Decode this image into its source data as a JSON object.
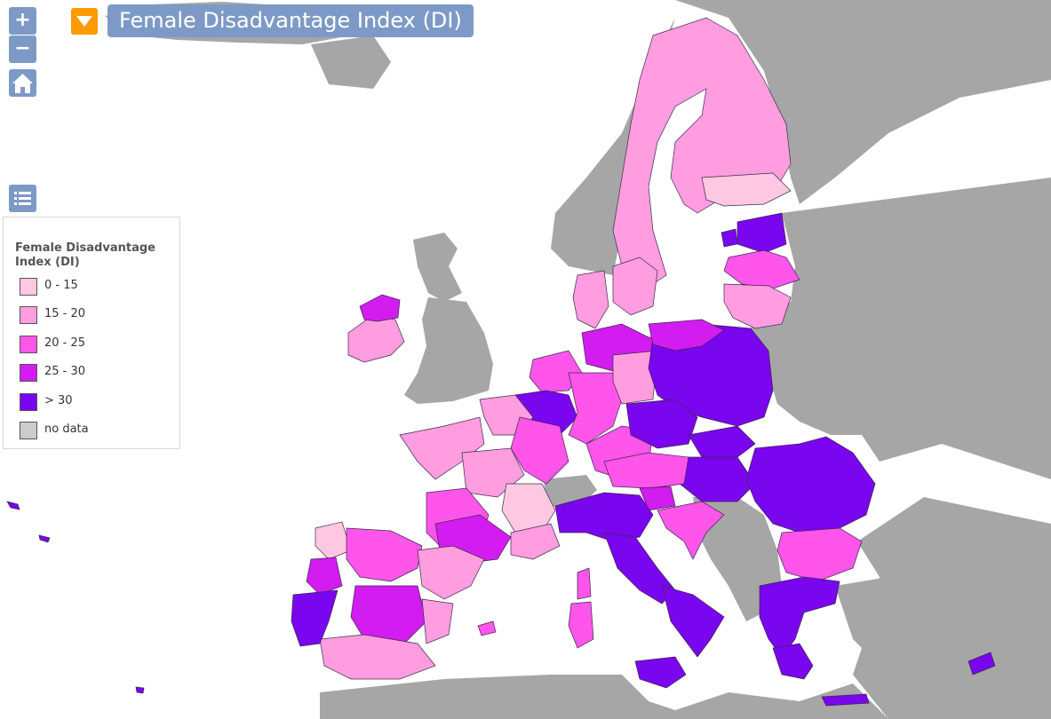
{
  "map": {
    "title": "Female Disadvantage Index (DI)",
    "background_color": "#ffffff",
    "land_color": "#a6a6a6"
  },
  "controls": {
    "zoom_in_label": "+",
    "zoom_out_label": "−",
    "home_icon": "home-icon",
    "legend_icon": "list-icon",
    "title_toggle_icon": "chevron-down-icon",
    "button_color": "#7d9ac6",
    "toggle_color": "#ff9a00"
  },
  "legend": {
    "title": "Female Disadvantage Index (DI)",
    "items": [
      {
        "label": "0 - 15",
        "color": "#ffc8e2"
      },
      {
        "label": "15 - 20",
        "color": "#ff9de0"
      },
      {
        "label": "20 - 25",
        "color": "#ff55ea"
      },
      {
        "label": "25 - 30",
        "color": "#d21cf0"
      },
      {
        "label": "> 30",
        "color": "#7a05ef"
      },
      {
        "label": "no data",
        "color": "#cccccc"
      }
    ]
  },
  "regions": [
    {
      "area": "Northern Scandinavia",
      "class": "15 - 20"
    },
    {
      "area": "Southern Finland",
      "class": "0 - 15"
    },
    {
      "area": "Estonia",
      "class": "> 30"
    },
    {
      "area": "Latvia",
      "class": "20 - 25"
    },
    {
      "area": "Lithuania",
      "class": "15 - 20"
    },
    {
      "area": "Ireland",
      "class": "15 - 20"
    },
    {
      "area": "Northern Ireland",
      "class": "25 - 30"
    },
    {
      "area": "Netherlands",
      "class": "20 - 25"
    },
    {
      "area": "Belgium",
      "class": "> 30"
    },
    {
      "area": "Luxembourg",
      "class": "> 30"
    },
    {
      "area": "Northern Germany",
      "class": "25 - 30"
    },
    {
      "area": "Eastern Germany",
      "class": "20 - 25"
    },
    {
      "area": "Southern Germany",
      "class": "20 - 25"
    },
    {
      "area": "Western France",
      "class": "15 - 20"
    },
    {
      "area": "Central France",
      "class": "20 - 25"
    },
    {
      "area": "Southern France",
      "class": "25 - 30"
    },
    {
      "area": "Auvergne-Rhône-Alpes",
      "class": "0 - 15"
    },
    {
      "area": "Galicia",
      "class": "0 - 15"
    },
    {
      "area": "Northern Spain",
      "class": "20 - 25"
    },
    {
      "area": "Eastern Spain",
      "class": "15 - 20"
    },
    {
      "area": "Central Spain",
      "class": "25 - 30"
    },
    {
      "area": "Andalusia",
      "class": "15 - 20"
    },
    {
      "area": "Portugal",
      "class": "> 30"
    },
    {
      "area": "Italy",
      "class": "> 30"
    },
    {
      "area": "Sardinia",
      "class": "20 - 25"
    },
    {
      "area": "Sicily",
      "class": "> 30"
    },
    {
      "area": "Poland",
      "class": "> 30"
    },
    {
      "area": "Czechia",
      "class": "> 30"
    },
    {
      "area": "Slovakia",
      "class": "> 30"
    },
    {
      "area": "Hungary",
      "class": "> 30"
    },
    {
      "area": "Austria",
      "class": "20 - 25"
    },
    {
      "area": "Slovenia",
      "class": "25 - 30"
    },
    {
      "area": "Croatia",
      "class": "20 - 25"
    },
    {
      "area": "Romania",
      "class": "> 30"
    },
    {
      "area": "Bulgaria",
      "class": "20 - 25"
    },
    {
      "area": "Greece",
      "class": "> 30"
    },
    {
      "area": "Cyprus",
      "class": "> 30"
    },
    {
      "area": "Corsica",
      "class": "20 - 25"
    }
  ]
}
